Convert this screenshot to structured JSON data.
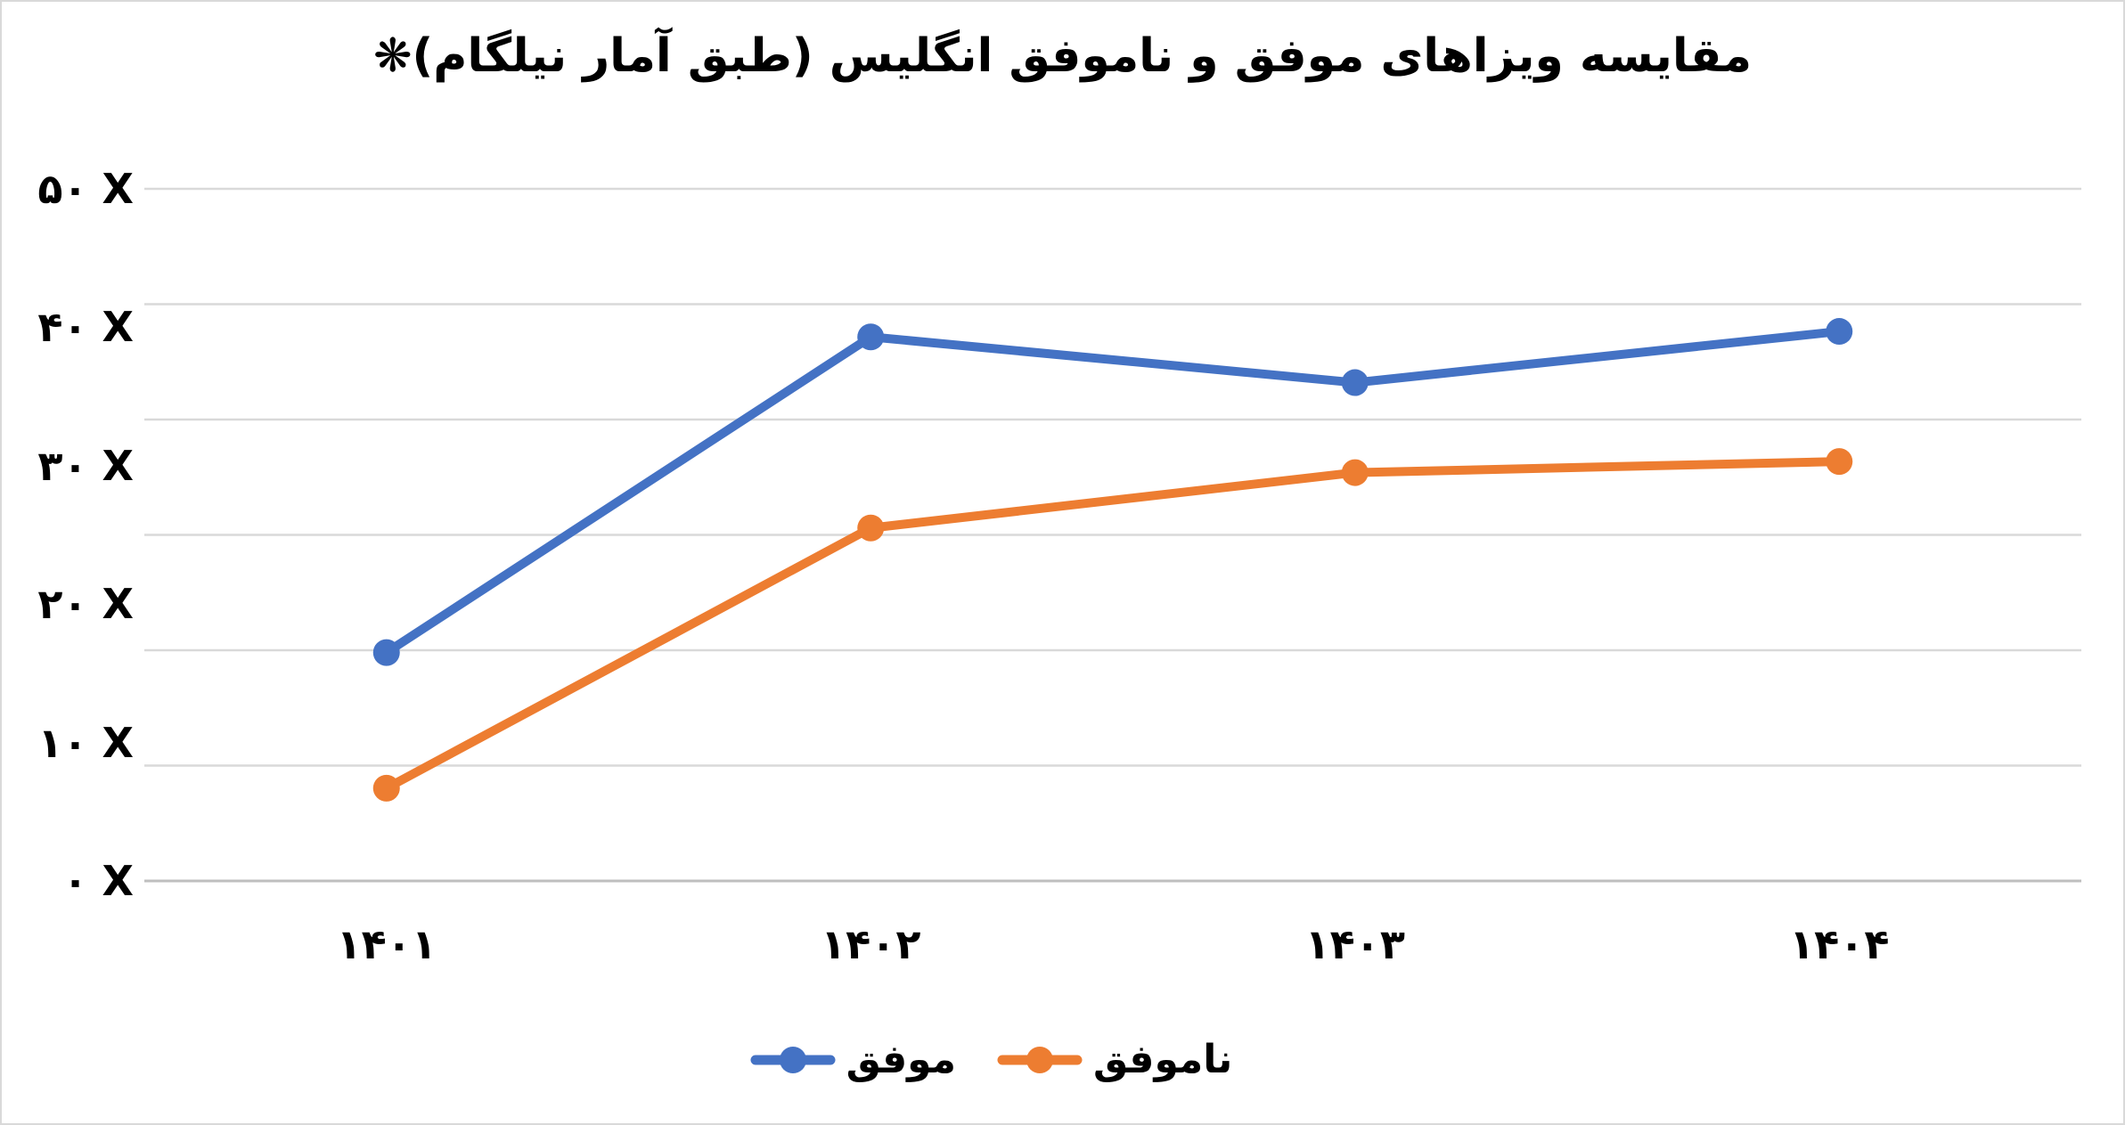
{
  "chart_data": {
    "type": "line",
    "title": "مقایسه ویزاهای موفق و ناموفق انگلیس (طبق آمار نیلگام)❋",
    "categories": [
      "۱۴۰۱",
      "۱۴۰۲",
      "۱۴۰۳",
      "۱۴۰۴"
    ],
    "series": [
      {
        "name": "موفق",
        "color": "#4472C4",
        "values": [
          16.5,
          39.3,
          36.0,
          39.7
        ]
      },
      {
        "name": "ناموفق",
        "color": "#ED7D31",
        "values": [
          6.7,
          25.5,
          29.5,
          30.3
        ]
      }
    ],
    "y_ticks": [
      {
        "label": "۵۰ X",
        "value": 50
      },
      {
        "label": "۴۰ X",
        "value": 40
      },
      {
        "label": "۳۰ X",
        "value": 30
      },
      {
        "label": "۲۰ X",
        "value": 20
      },
      {
        "label": "۱۰ X",
        "value": 10
      },
      {
        "label": "۰ X",
        "value": 0
      }
    ],
    "ylim": [
      0,
      50
    ],
    "xlabel": "",
    "ylabel": "",
    "grid": true,
    "gridline_count": 7,
    "legend_position": "bottom"
  },
  "colors": {
    "grid": "#D9D9D9",
    "axis": "#BFBFBF",
    "text": "#000000",
    "background": "#FFFFFF",
    "border": "#D9D9D9"
  }
}
